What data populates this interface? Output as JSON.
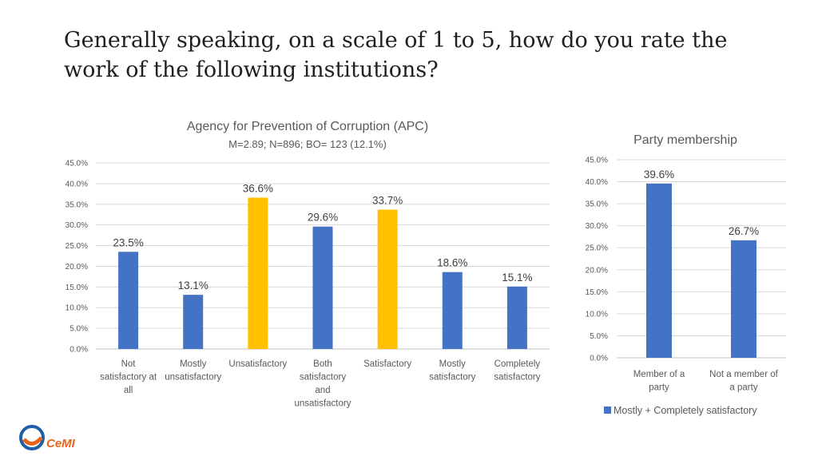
{
  "page": {
    "title": "Generally speaking, on a scale of 1 to 5, how do you rate the work of the following institutions?",
    "logo_text": "CeMI"
  },
  "colors": {
    "blue": "#4472C4",
    "gold": "#FFC000",
    "grid": "#D9D9D9"
  },
  "chart_data": [
    {
      "type": "bar",
      "title": "Agency for Prevention of Corruption (APC)",
      "subtitle": "M=2.89; N=896; BO= 123 (12.1%)",
      "categories": [
        "Not satisfactory at all",
        "Mostly unsatisfactory",
        "Unsatisfactory",
        "Both satisfactory and unsatisfactory",
        "Satisfactory",
        "Mostly satisfactory",
        "Completely satisfactory"
      ],
      "category_lines": [
        [
          "Not",
          "satisfactory at",
          "all"
        ],
        [
          "Mostly",
          "unsatisfactory"
        ],
        [
          "Unsatisfactory"
        ],
        [
          "Both",
          "satisfactory",
          "and",
          "unsatisfactory"
        ],
        [
          "Satisfactory"
        ],
        [
          "Mostly",
          "satisfactory"
        ],
        [
          "Completely",
          "satisfactory"
        ]
      ],
      "values": [
        23.5,
        13.1,
        36.6,
        29.6,
        33.7,
        18.6,
        15.1
      ],
      "value_labels": [
        "23.5%",
        "13.1%",
        "36.6%",
        "29.6%",
        "33.7%",
        "18.6%",
        "15.1%"
      ],
      "bar_colors": [
        "#4472C4",
        "#4472C4",
        "#FFC000",
        "#4472C4",
        "#FFC000",
        "#4472C4",
        "#4472C4"
      ],
      "ylim": [
        0,
        45
      ],
      "yticks": [
        "0.0%",
        "5.0%",
        "10.0%",
        "15.0%",
        "20.0%",
        "25.0%",
        "30.0%",
        "35.0%",
        "40.0%",
        "45.0%"
      ],
      "grid": true,
      "legend": "none"
    },
    {
      "type": "bar",
      "title": "Party membership",
      "categories": [
        "Member of a party",
        "Not a member of a party"
      ],
      "category_lines": [
        [
          "Member of a",
          "party"
        ],
        [
          "Not a member of",
          "a party"
        ]
      ],
      "values": [
        39.6,
        26.7
      ],
      "value_labels": [
        "39.6%",
        "26.7%"
      ],
      "bar_colors": [
        "#4472C4",
        "#4472C4"
      ],
      "ylim": [
        0,
        45
      ],
      "yticks": [
        "0.0%",
        "5.0%",
        "10.0%",
        "15.0%",
        "20.0%",
        "25.0%",
        "30.0%",
        "35.0%",
        "40.0%",
        "45.0%"
      ],
      "grid": true,
      "legend": "bottom",
      "series_name": "Mostly + Completely satisfactory"
    }
  ]
}
